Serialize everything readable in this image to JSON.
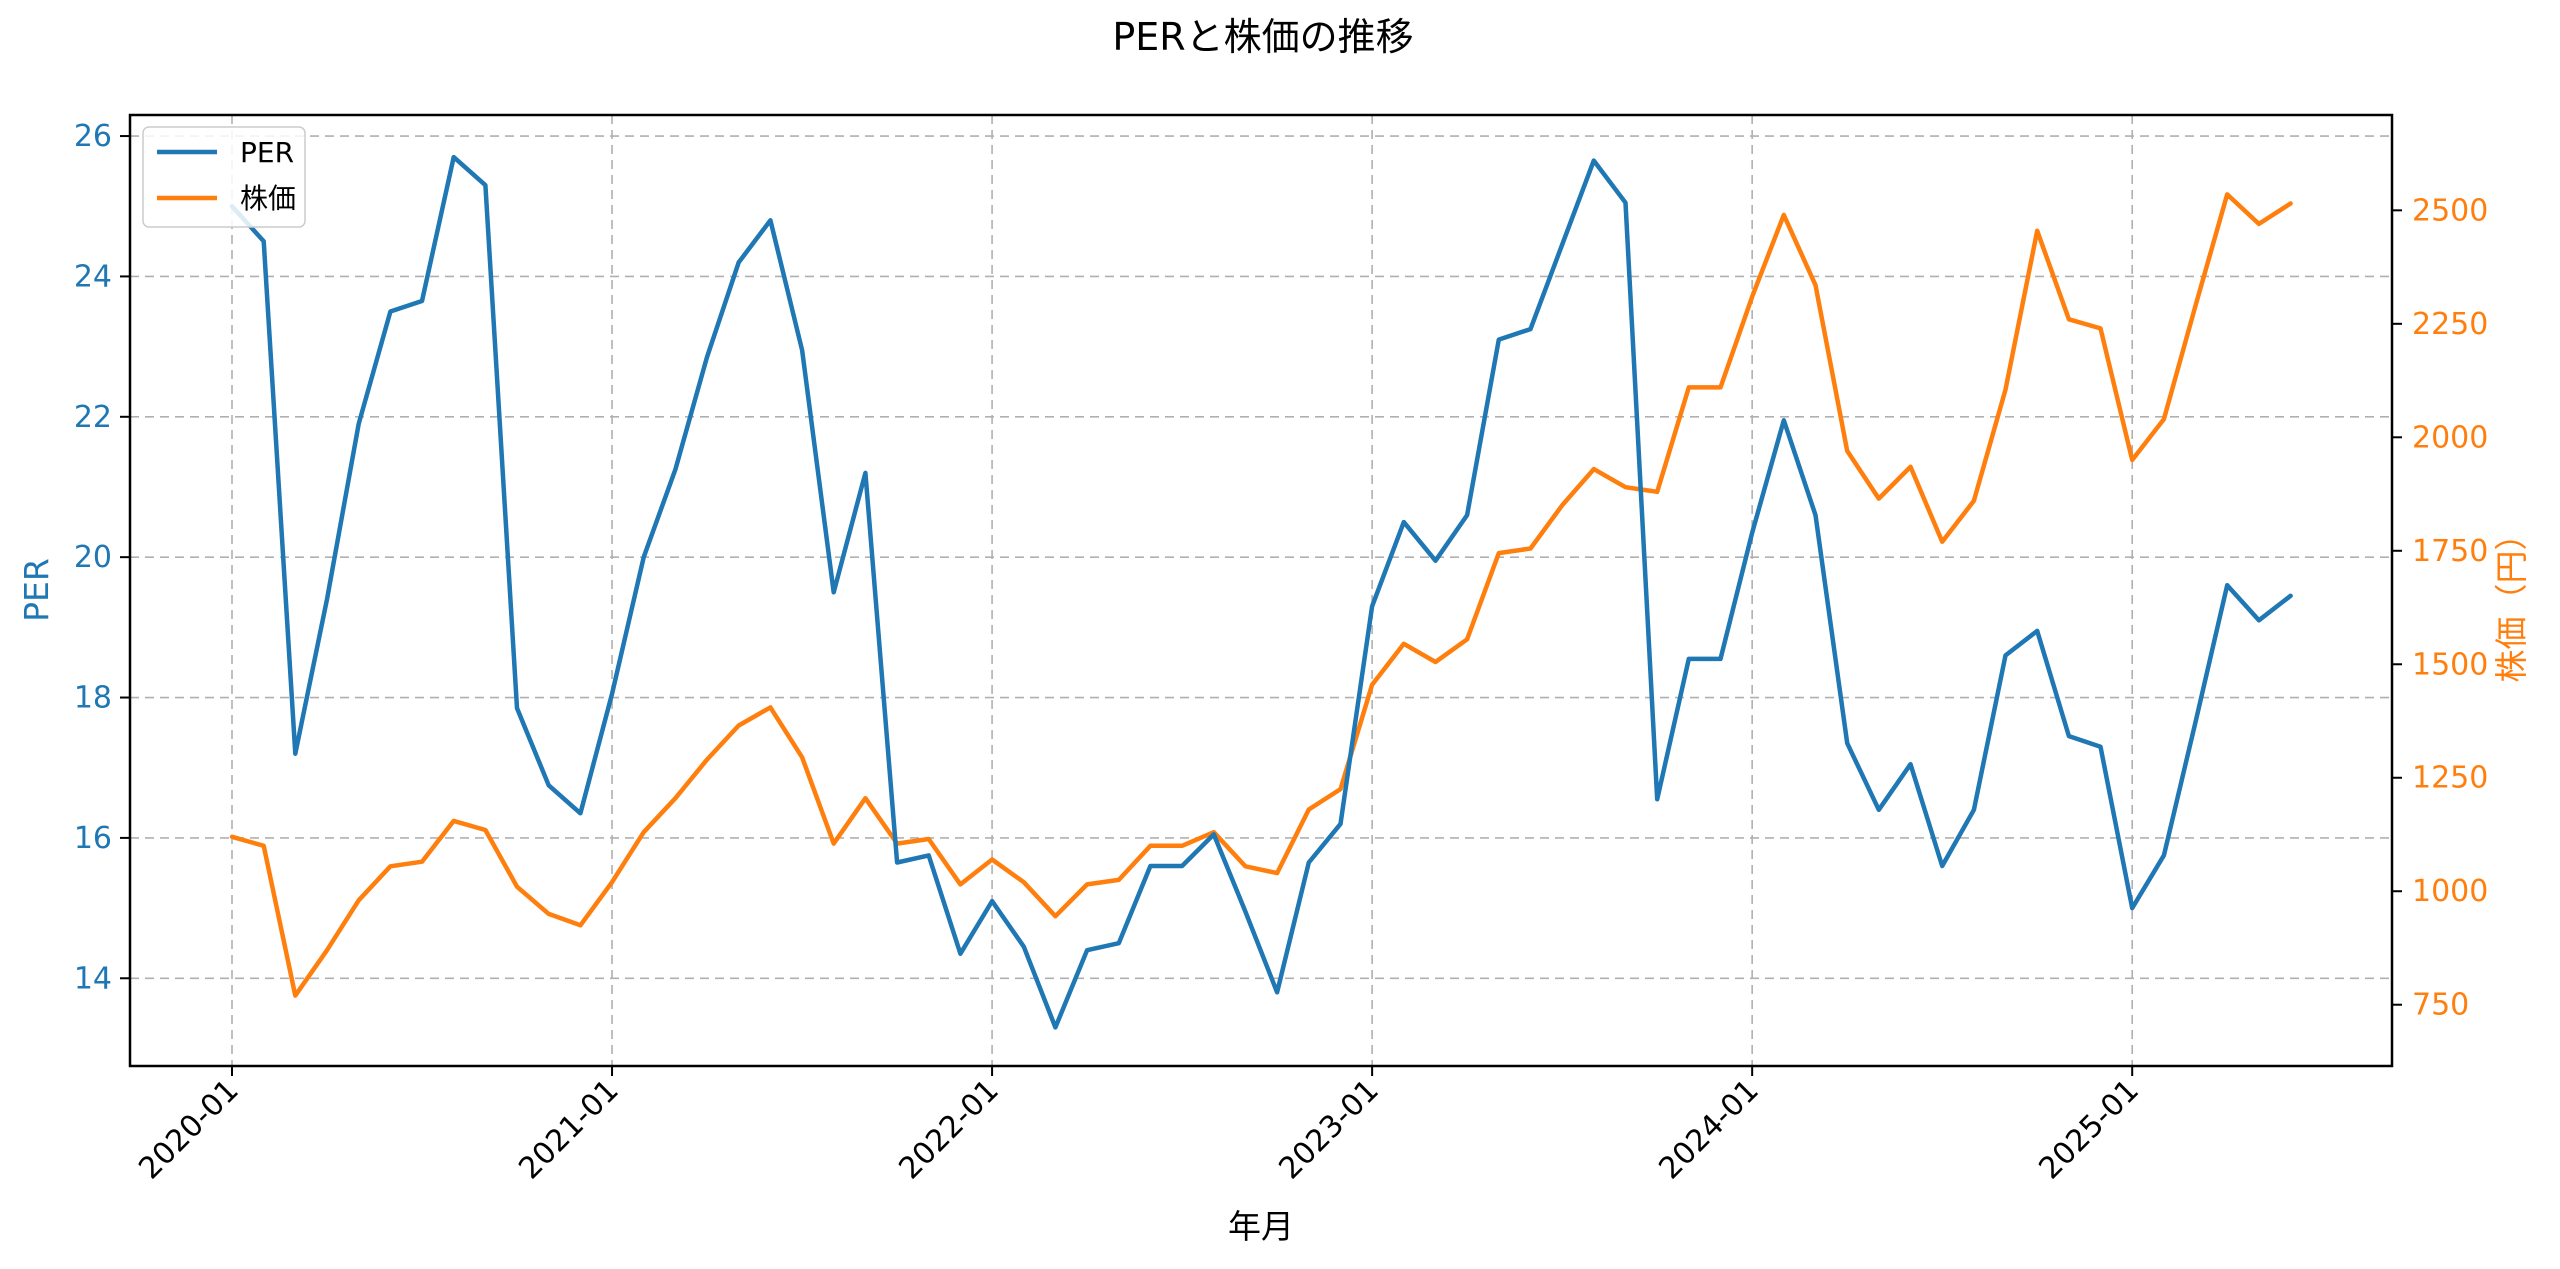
{
  "chart_data": {
    "type": "line",
    "title": "PERと株価の推移",
    "xlabel": "年月",
    "ylabel_left": "PER",
    "ylabel_right": "株価（円）",
    "left_color": "#1f77b4",
    "right_color": "#ff7f0e",
    "grid": true,
    "legend_position": "top-left",
    "x_tick_labels": [
      "2020-01",
      "2021-01",
      "2022-01",
      "2023-01",
      "2024-01",
      "2025-01"
    ],
    "x_tick_indices": [
      0,
      12,
      24,
      36,
      48,
      60
    ],
    "y_left_ticks": [
      14,
      16,
      18,
      20,
      22,
      24,
      26
    ],
    "y_left_range": [
      12.75,
      26.3
    ],
    "y_right_ticks": [
      750,
      1000,
      1250,
      1500,
      1750,
      2000,
      2250,
      2500
    ],
    "y_right_range": [
      615,
      2710
    ],
    "series": [
      {
        "name": "PER",
        "axis": "left",
        "values": [
          25.0,
          24.5,
          17.2,
          19.4,
          21.9,
          23.5,
          23.65,
          25.7,
          25.3,
          17.85,
          16.75,
          16.35,
          18.05,
          20.0,
          21.25,
          22.85,
          24.2,
          24.8,
          22.95,
          19.5,
          21.2,
          15.65,
          15.75,
          14.35,
          15.1,
          14.45,
          13.3,
          14.4,
          14.5,
          15.6,
          15.6,
          16.05,
          14.95,
          13.8,
          15.65,
          16.2,
          19.3,
          20.5,
          19.95,
          20.6,
          23.1,
          23.25,
          24.45,
          25.65,
          25.05,
          16.55,
          18.55,
          18.55,
          20.35,
          21.95,
          20.6,
          17.35,
          16.4,
          17.05,
          15.6,
          16.4,
          18.6,
          18.95,
          17.45,
          17.3,
          15.0,
          15.75,
          17.65,
          19.6,
          19.1,
          19.45
        ]
      },
      {
        "name": "株価",
        "axis": "right",
        "values": [
          1120,
          1100,
          770,
          870,
          980,
          1055,
          1065,
          1155,
          1135,
          1010,
          950,
          925,
          1020,
          1130,
          1205,
          1290,
          1365,
          1405,
          1295,
          1105,
          1205,
          1105,
          1115,
          1015,
          1070,
          1020,
          945,
          1015,
          1025,
          1100,
          1100,
          1130,
          1055,
          1040,
          1180,
          1225,
          1455,
          1545,
          1505,
          1555,
          1745,
          1755,
          1850,
          1930,
          1890,
          1880,
          2110,
          2110,
          2310,
          2490,
          2335,
          1970,
          1865,
          1935,
          1770,
          1860,
          2105,
          2455,
          2260,
          2240,
          1950,
          2040,
          2290,
          2535,
          2470,
          2515
        ]
      }
    ]
  }
}
